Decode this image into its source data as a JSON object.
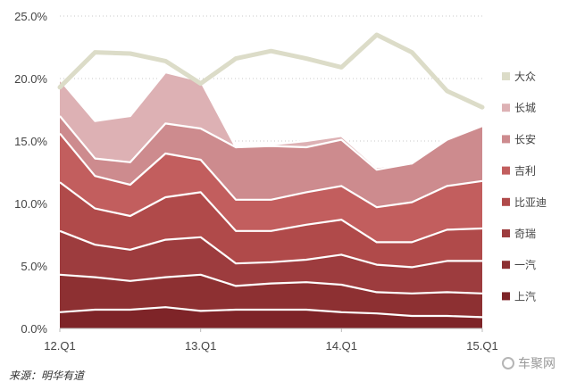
{
  "chart_data": {
    "type": "area",
    "stacked": true,
    "x_tick_labels": [
      "12.Q1",
      "13.Q1",
      "14.Q1",
      "15.Q1"
    ],
    "y_tick_labels": [
      "0.0%",
      "5.0%",
      "10.0%",
      "15.0%",
      "20.0%",
      "25.0%"
    ],
    "ylim": [
      0,
      25
    ],
    "grid": "horizontal-dotted",
    "legend_position": "right",
    "x": [
      "12.Q1",
      "12.Q2",
      "12.Q3",
      "12.Q4",
      "13.Q1",
      "13.Q2",
      "13.Q3",
      "13.Q4",
      "14.Q1",
      "14.Q2",
      "14.Q3",
      "14.Q4",
      "15.Q1"
    ],
    "series": [
      {
        "name": "上汽",
        "color": "#7e2428",
        "values": [
          1.3,
          1.5,
          1.5,
          1.7,
          1.4,
          1.5,
          1.5,
          1.5,
          1.3,
          1.2,
          1.0,
          1.0,
          0.9
        ]
      },
      {
        "name": "一汽",
        "color": "#8d3032",
        "values": [
          3.0,
          2.6,
          2.3,
          2.4,
          2.9,
          1.9,
          2.1,
          2.2,
          2.2,
          1.7,
          1.8,
          1.9,
          1.9
        ]
      },
      {
        "name": "奇瑞",
        "color": "#9d3c3e",
        "values": [
          3.5,
          2.6,
          2.5,
          3.0,
          3.0,
          1.8,
          1.7,
          1.8,
          2.4,
          2.2,
          2.1,
          2.5,
          2.6
        ]
      },
      {
        "name": "比亚迪",
        "color": "#b04a4a",
        "values": [
          3.9,
          2.9,
          2.7,
          3.4,
          3.6,
          2.6,
          2.5,
          2.8,
          2.8,
          1.8,
          2.0,
          2.5,
          2.6
        ]
      },
      {
        "name": "吉利",
        "color": "#c25e5e",
        "values": [
          3.9,
          2.6,
          2.5,
          3.5,
          2.6,
          2.5,
          2.5,
          2.6,
          2.7,
          2.8,
          3.2,
          3.5,
          3.8
        ]
      },
      {
        "name": "长安",
        "color": "#cd8b8e",
        "values": [
          1.4,
          1.4,
          1.8,
          2.4,
          2.5,
          4.2,
          4.3,
          3.6,
          3.7,
          3.0,
          3.1,
          3.7,
          4.4
        ]
      },
      {
        "name": "长城",
        "color": "#ddb1b4",
        "values": [
          2.9,
          3.0,
          3.7,
          4.1,
          3.8,
          0.0,
          0.1,
          0.5,
          0.3,
          0.2,
          0.0,
          0.1,
          0.1
        ]
      },
      {
        "name": "大众",
        "color": "#dcdcc8",
        "type": "line",
        "values": [
          19.3,
          22.1,
          22.0,
          21.4,
          19.6,
          21.6,
          22.2,
          21.6,
          20.9,
          23.5,
          22.1,
          19.0,
          17.7
        ]
      }
    ]
  },
  "source_text": "来源：明华有道",
  "watermark_text": "车聚网"
}
